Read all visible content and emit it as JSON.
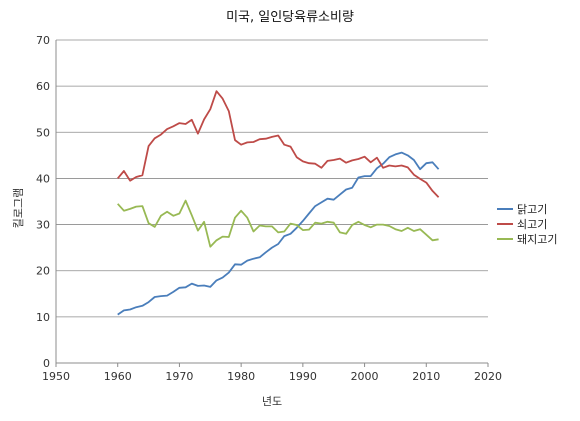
{
  "chart_data": {
    "type": "line",
    "title": "미국, 일인당육류소비량",
    "xlabel": "년도",
    "ylabel": "킬로그램",
    "xlim": [
      1950,
      2020
    ],
    "ylim": [
      0,
      70
    ],
    "xticks": [
      "1950",
      "1960",
      "1970",
      "1980",
      "1990",
      "2000",
      "2010",
      "2020"
    ],
    "yticks": [
      "0",
      "10",
      "20",
      "30",
      "40",
      "50",
      "60",
      "70"
    ],
    "grid": "horizontal",
    "legend_position": "right",
    "x": [
      1960,
      1961,
      1962,
      1963,
      1964,
      1965,
      1966,
      1967,
      1968,
      1969,
      1970,
      1971,
      1972,
      1973,
      1974,
      1975,
      1976,
      1977,
      1978,
      1979,
      1980,
      1981,
      1982,
      1983,
      1984,
      1985,
      1986,
      1987,
      1988,
      1989,
      1990,
      1991,
      1992,
      1993,
      1994,
      1995,
      1996,
      1997,
      1998,
      1999,
      2000,
      2001,
      2002,
      2003,
      2004,
      2005,
      2006,
      2007,
      2008,
      2009,
      2010,
      2011,
      2012
    ],
    "series": [
      {
        "name": "닭고기",
        "color": "#4a7ebb",
        "values": [
          10.5,
          11.4,
          11.6,
          12.1,
          12.4,
          13.2,
          14.3,
          14.5,
          14.6,
          15.4,
          16.3,
          16.4,
          17.2,
          16.7,
          16.8,
          16.5,
          17.9,
          18.5,
          19.6,
          21.4,
          21.3,
          22.2,
          22.6,
          22.9,
          24.0,
          25.0,
          25.8,
          27.5,
          28.0,
          29.3,
          30.8,
          32.4,
          34.0,
          34.8,
          35.6,
          35.4,
          36.5,
          37.6,
          38.0,
          40.2,
          40.5,
          40.5,
          42.2,
          43.2,
          44.6,
          45.2,
          45.6,
          45.0,
          44.0,
          42.0,
          43.3,
          43.5,
          42.0
        ]
      },
      {
        "name": "쇠고기",
        "color": "#be4b48",
        "values": [
          40.0,
          41.6,
          39.5,
          40.3,
          40.7,
          47.0,
          48.7,
          49.5,
          50.7,
          51.3,
          52.0,
          51.8,
          52.7,
          49.7,
          52.8,
          55.0,
          58.9,
          57.3,
          54.6,
          48.3,
          47.3,
          47.8,
          47.9,
          48.5,
          48.6,
          49.0,
          49.3,
          47.3,
          46.9,
          44.6,
          43.7,
          43.3,
          43.2,
          42.3,
          43.8,
          44.0,
          44.3,
          43.4,
          43.9,
          44.2,
          44.7,
          43.5,
          44.5,
          42.3,
          42.8,
          42.6,
          42.8,
          42.4,
          40.8,
          39.9,
          39.1,
          37.3,
          35.9
        ]
      },
      {
        "name": "돼지고기",
        "color": "#98b954",
        "values": [
          34.5,
          33.0,
          33.4,
          33.9,
          34.0,
          30.3,
          29.5,
          31.9,
          32.8,
          31.9,
          32.4,
          35.2,
          32.0,
          28.7,
          30.6,
          25.2,
          26.6,
          27.4,
          27.3,
          31.5,
          33.0,
          31.5,
          28.5,
          29.8,
          29.6,
          29.6,
          28.3,
          28.5,
          30.2,
          29.9,
          28.8,
          28.9,
          30.4,
          30.2,
          30.6,
          30.4,
          28.3,
          28.0,
          29.9,
          30.6,
          29.9,
          29.4,
          30.0,
          30.0,
          29.7,
          29.0,
          28.6,
          29.3,
          28.6,
          29.0,
          27.8,
          26.6,
          26.8
        ]
      }
    ]
  }
}
